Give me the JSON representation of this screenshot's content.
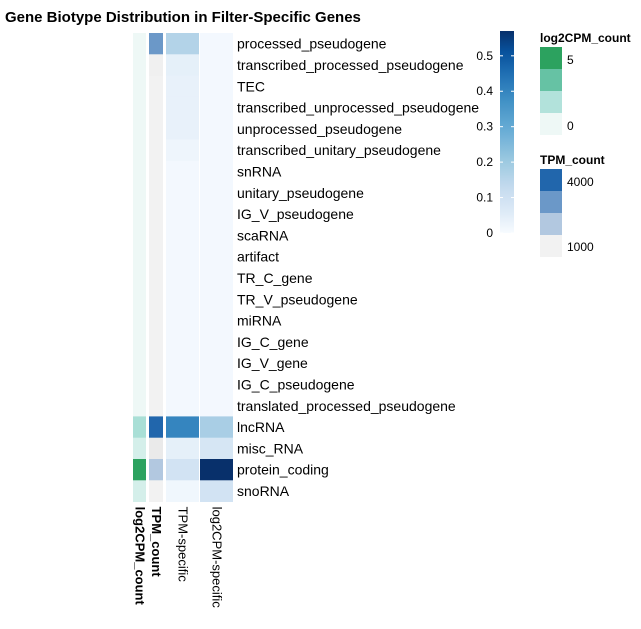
{
  "chart_data": {
    "type": "heatmap",
    "title": "Gene Biotype Distribution in Filter-Specific Genes",
    "rows": [
      "processed_pseudogene",
      "transcribed_processed_pseudogene",
      "TEC",
      "transcribed_unprocessed_pseudogene",
      "unprocessed_pseudogene",
      "transcribed_unitary_pseudogene",
      "snRNA",
      "unitary_pseudogene",
      "IG_V_pseudogene",
      "scaRNA",
      "artifact",
      "TR_C_gene",
      "TR_V_pseudogene",
      "miRNA",
      "IG_C_gene",
      "IG_V_gene",
      "IG_C_pseudogene",
      "translated_processed_pseudogene",
      "lncRNA",
      "misc_RNA",
      "protein_coding",
      "snoRNA"
    ],
    "annotation_columns": [
      {
        "name": "log2CPM_count",
        "bold": true,
        "colors": [
          "#eef8f6",
          "#eef8f6",
          "#eef8f6",
          "#eef8f6",
          "#eef8f6",
          "#eef8f6",
          "#eef8f6",
          "#eef8f6",
          "#eef8f6",
          "#eef8f6",
          "#eef8f6",
          "#eef8f6",
          "#eef8f6",
          "#eef8f6",
          "#eef8f6",
          "#eef8f6",
          "#eef8f6",
          "#eef8f6",
          "#a9dfd6",
          "#d4efea",
          "#2ca25f",
          "#d4efea"
        ]
      },
      {
        "name": "TPM_count",
        "bold": true,
        "colors": [
          "#6b98c8",
          "#f0f0f0",
          "#f2f2f2",
          "#f2f2f2",
          "#f2f2f2",
          "#f2f2f2",
          "#f2f2f2",
          "#f2f2f2",
          "#f2f2f2",
          "#f2f2f2",
          "#f2f2f2",
          "#f2f2f2",
          "#f2f2f2",
          "#f2f2f2",
          "#f2f2f2",
          "#f2f2f2",
          "#f2f2f2",
          "#f2f2f2",
          "#2166ac",
          "#eaeaea",
          "#b2c8e0",
          "#f2f2f2"
        ]
      }
    ],
    "heatmap_columns": [
      "TPM-specific",
      "log2CPM-specific"
    ],
    "values": [
      [
        0.16,
        0.01
      ],
      [
        0.04,
        0.01
      ],
      [
        0.035,
        0.01
      ],
      [
        0.035,
        0.01
      ],
      [
        0.035,
        0.01
      ],
      [
        0.02,
        0.01
      ],
      [
        0.01,
        0.01
      ],
      [
        0.01,
        0.01
      ],
      [
        0.01,
        0.01
      ],
      [
        0.01,
        0.01
      ],
      [
        0.01,
        0.01
      ],
      [
        0.01,
        0.01
      ],
      [
        0.01,
        0.01
      ],
      [
        0.01,
        0.01
      ],
      [
        0.01,
        0.01
      ],
      [
        0.01,
        0.01
      ],
      [
        0.01,
        0.01
      ],
      [
        0.01,
        0.01
      ],
      [
        0.4,
        0.18
      ],
      [
        0.04,
        0.08
      ],
      [
        0.09,
        0.57
      ],
      [
        0.015,
        0.09
      ]
    ],
    "colorbar": {
      "range": [
        0,
        0.57
      ],
      "ticks": [
        "0",
        "0.1",
        "0.2",
        "0.3",
        "0.4",
        "0.5"
      ],
      "tick_values": [
        0,
        0.1,
        0.2,
        0.3,
        0.4,
        0.5
      ]
    },
    "legends": [
      {
        "title": "log2CPM_count",
        "swatches": [
          "#2ca25f",
          "#66c2a4",
          "#b2e2db",
          "#eef8f6"
        ],
        "labels": [
          "5",
          "0"
        ]
      },
      {
        "title": "TPM_count",
        "swatches": [
          "#2166ac",
          "#6b98c8",
          "#b2c8e0",
          "#f2f2f2"
        ],
        "labels": [
          "4000",
          "1000"
        ]
      }
    ]
  }
}
